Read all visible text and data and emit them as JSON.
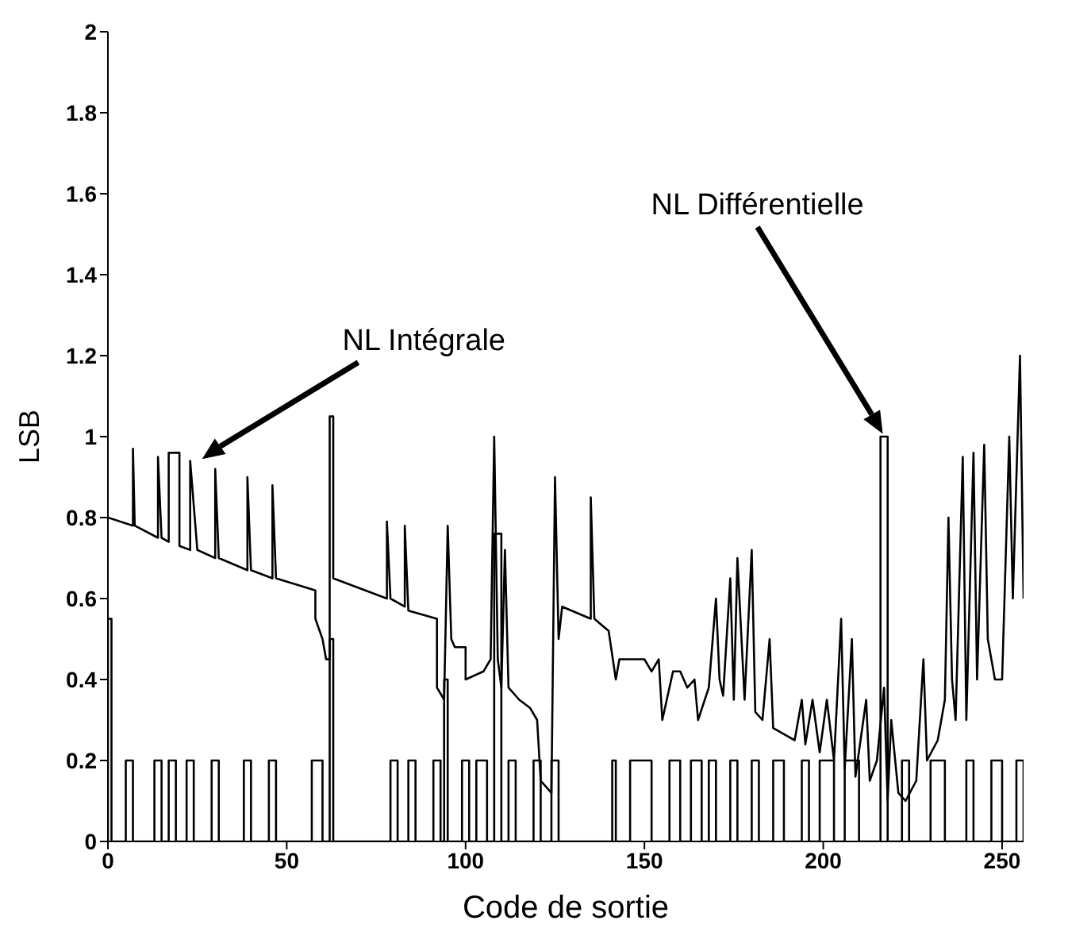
{
  "chart_data": {
    "type": "line",
    "xlabel": "Code de sortie",
    "ylabel": "LSB",
    "xlim": [
      0,
      256
    ],
    "xticks": [
      0,
      50,
      100,
      150,
      200,
      250
    ],
    "ylim": [
      0,
      2
    ],
    "yticks": [
      0,
      0.2,
      0.4,
      0.6,
      0.8,
      1,
      1.2,
      1.4,
      1.6,
      1.8,
      2
    ],
    "grid": false,
    "marker": "none",
    "line_style": "solid",
    "annotations": [
      "NL Intégrale",
      "NL Différentielle"
    ],
    "series": [
      {
        "color": "#000000",
        "x": [
          0,
          7,
          7,
          7.5,
          14,
          14,
          15,
          17,
          17,
          20,
          20,
          23,
          23,
          25,
          30,
          30,
          31,
          39,
          39,
          40,
          46,
          46,
          47,
          58,
          58,
          60,
          61,
          62,
          62,
          63,
          63,
          78,
          78,
          79,
          83,
          83,
          84,
          92,
          92,
          94,
          95,
          96,
          97,
          100,
          100,
          105,
          107,
          108,
          109,
          110,
          111,
          112,
          115,
          118,
          120,
          121,
          124,
          125,
          126,
          127,
          135,
          135,
          136,
          140,
          142,
          143,
          150,
          152,
          154,
          155,
          158,
          160,
          162,
          164,
          165,
          168,
          170,
          171,
          172,
          174,
          175,
          176,
          178,
          180,
          181,
          183,
          185,
          186,
          190,
          192,
          194,
          195,
          197,
          199,
          201,
          203,
          205,
          206,
          208,
          209,
          212,
          213,
          215,
          217,
          218,
          219,
          221,
          223,
          226,
          228,
          229,
          232,
          234,
          235,
          236,
          237,
          239,
          240,
          242,
          243,
          245,
          246,
          248,
          250,
          252,
          253,
          255,
          256
        ],
        "values": [
          0.8,
          0.78,
          0.97,
          0.78,
          0.75,
          0.95,
          0.75,
          0.74,
          0.96,
          0.96,
          0.73,
          0.72,
          0.94,
          0.72,
          0.7,
          0.92,
          0.7,
          0.67,
          0.9,
          0.67,
          0.65,
          0.88,
          0.65,
          0.62,
          0.55,
          0.5,
          0.45,
          0.45,
          1.05,
          1.05,
          0.65,
          0.6,
          0.79,
          0.6,
          0.58,
          0.78,
          0.57,
          0.55,
          0.38,
          0.35,
          0.78,
          0.5,
          0.48,
          0.48,
          0.4,
          0.42,
          0.45,
          1,
          0.45,
          0.38,
          0.72,
          0.38,
          0.35,
          0.33,
          0.3,
          0.15,
          0.12,
          0.9,
          0.5,
          0.58,
          0.55,
          0.85,
          0.55,
          0.52,
          0.4,
          0.45,
          0.45,
          0.42,
          0.45,
          0.3,
          0.42,
          0.42,
          0.38,
          0.4,
          0.3,
          0.38,
          0.6,
          0.4,
          0.36,
          0.65,
          0.35,
          0.7,
          0.35,
          0.72,
          0.32,
          0.3,
          0.5,
          0.28,
          0.26,
          0.25,
          0.35,
          0.24,
          0.35,
          0.22,
          0.35,
          0.2,
          0.55,
          0.18,
          0.5,
          0.16,
          0.35,
          0.15,
          0.2,
          0.38,
          0.1,
          0.3,
          0.12,
          0.1,
          0.15,
          0.45,
          0.2,
          0.25,
          0.35,
          0.8,
          0.4,
          0.3,
          0.95,
          0.3,
          0.96,
          0.4,
          0.98,
          0.5,
          0.4,
          0.4,
          1,
          0.6,
          1.2,
          0.6
        ]
      },
      {
        "color": "#000000",
        "x": [
          0,
          0,
          1,
          1,
          5,
          5,
          7,
          7,
          13,
          13,
          15,
          15,
          17,
          17,
          19,
          19,
          22,
          22,
          24,
          24,
          29,
          29,
          31,
          31,
          38,
          38,
          40,
          40,
          45,
          45,
          47,
          47,
          57,
          57,
          60,
          60,
          62,
          62,
          63,
          63,
          79,
          79,
          81,
          81,
          84,
          84,
          86,
          86,
          91,
          91,
          93,
          93,
          94,
          94,
          95,
          95,
          99,
          99,
          101,
          101,
          103,
          103,
          106,
          106,
          108,
          108,
          110,
          110,
          112,
          112,
          114,
          114,
          119,
          119,
          121,
          121,
          124,
          124,
          126,
          126,
          141,
          141,
          142,
          142,
          146,
          146,
          152,
          152,
          157,
          157,
          160,
          160,
          163,
          163,
          166,
          166,
          168,
          168,
          170,
          170,
          174,
          174,
          176,
          176,
          180,
          180,
          182,
          182,
          186,
          186,
          189,
          189,
          194,
          194,
          196,
          196,
          199,
          199,
          203,
          203,
          206,
          206,
          210,
          210,
          216,
          216,
          218,
          218,
          222,
          222,
          224,
          224,
          230,
          230,
          234,
          234,
          240,
          240,
          242,
          242,
          247,
          247,
          250,
          250,
          254,
          254,
          256,
          256
        ],
        "values": [
          0,
          0.55,
          0.55,
          0,
          0,
          0.2,
          0.2,
          0,
          0,
          0.2,
          0.2,
          0,
          0,
          0.2,
          0.2,
          0,
          0,
          0.2,
          0.2,
          0,
          0,
          0.2,
          0.2,
          0,
          0,
          0.2,
          0.2,
          0,
          0,
          0.2,
          0.2,
          0,
          0,
          0.2,
          0.2,
          0,
          0,
          0.5,
          0.5,
          0,
          0,
          0.2,
          0.2,
          0,
          0,
          0.2,
          0.2,
          0,
          0,
          0.2,
          0.2,
          0,
          0,
          0.4,
          0.4,
          0,
          0,
          0.2,
          0.2,
          0,
          0,
          0.2,
          0.2,
          0,
          0,
          0.76,
          0.76,
          0,
          0,
          0.2,
          0.2,
          0,
          0,
          0.2,
          0.2,
          0,
          0,
          0.2,
          0.2,
          0,
          0,
          0.2,
          0.2,
          0,
          0,
          0.2,
          0.2,
          0,
          0,
          0.2,
          0.2,
          0,
          0,
          0.2,
          0.2,
          0,
          0,
          0.2,
          0.2,
          0,
          0,
          0.2,
          0.2,
          0,
          0,
          0.2,
          0.2,
          0,
          0,
          0.2,
          0.2,
          0,
          0,
          0.2,
          0.2,
          0,
          0,
          0.2,
          0.2,
          0,
          0,
          0.2,
          0.2,
          0,
          0,
          1,
          1,
          0,
          0,
          0.2,
          0.2,
          0,
          0,
          0.2,
          0.2,
          0,
          0,
          0.2,
          0.2,
          0,
          0,
          0.2,
          0.2,
          0,
          0,
          0.2,
          0.2,
          0
        ]
      }
    ]
  }
}
